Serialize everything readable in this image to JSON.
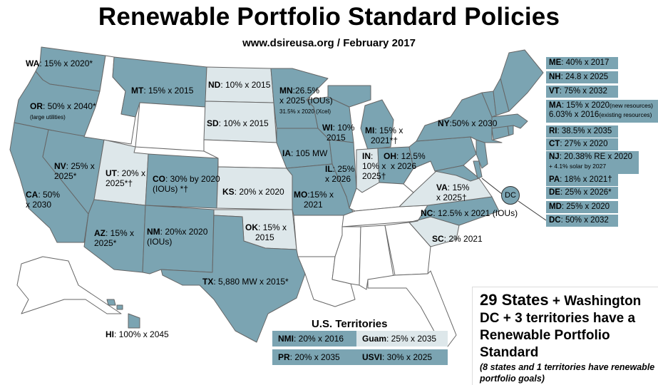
{
  "title": "Renewable Portfolio Standard Policies",
  "subtitle": "www.dsireusa.org  / February 2017",
  "colors": {
    "rps": "#7ba4b2",
    "goal": "#dde7ea",
    "none": "#ffffff",
    "border": "#666666"
  },
  "map_labels": {
    "wa": {
      "code": "WA",
      "text": ": 15% x 2020*"
    },
    "or": {
      "code": "OR",
      "text": ": 50% x 2040*",
      "note": "(large utilities)"
    },
    "ca": {
      "code": "CA",
      "text": ": 50%",
      "line2": "x 2030"
    },
    "nv": {
      "code": "NV",
      "text": ": 25% x",
      "line2": "2025*"
    },
    "ut": {
      "code": "UT",
      "text": ": 20% x",
      "line2": "2025*†"
    },
    "az": {
      "code": "AZ",
      "text": ": 15% x",
      "line2": "2025*"
    },
    "mt": {
      "code": "MT",
      "text": ": 15% x 2015"
    },
    "co": {
      "code": "CO",
      "text": ": 30% by 2020",
      "line2": "(IOUs) *†"
    },
    "nm": {
      "code": "NM",
      "text": ": 20%x 2020",
      "line2": "(IOUs)"
    },
    "nd": {
      "code": "ND",
      "text": ": 10% x 2015"
    },
    "sd": {
      "code": "SD",
      "text": ": 10% x 2015"
    },
    "ks": {
      "code": "KS",
      "text": ": 20% x 2020"
    },
    "ok": {
      "code": "OK",
      "text": ": 15% x",
      "line2": "2015"
    },
    "tx": {
      "code": "TX",
      "text": ": 5,880 MW x 2015*"
    },
    "mn": {
      "code": "MN",
      "text": ":26.5%",
      "line2": "x 2025 (IOUs)",
      "note": "31.5% x 2020 (Xcel)"
    },
    "ia": {
      "code": "IA",
      "text": ": 105 MW"
    },
    "mo": {
      "code": "MO",
      "text": ":15% x",
      "line2": "2021"
    },
    "wi": {
      "code": "WI",
      "text": ": 10%",
      "line2": "2015"
    },
    "il": {
      "code": "IL",
      "text": ": 25%",
      "line2": "x 2026"
    },
    "mi": {
      "code": "MI",
      "text": ": 15% x",
      "line2": "2021*†"
    },
    "in": {
      "code": "IN",
      "text": ":",
      "line2": "10% x",
      "line3": "2025†"
    },
    "oh": {
      "code": "OH",
      "text": ": 12.5%",
      "line2": "x 2026"
    },
    "ny": {
      "code": "NY",
      "text": ":50% x 2030"
    },
    "va": {
      "code": "VA",
      "text": ": 15%",
      "line2": "x 2025†"
    },
    "nc": {
      "code": "NC",
      "text": ": 12.5% x 2021 (IOUs)"
    },
    "sc": {
      "code": "SC",
      "text": ": 2% 2021"
    },
    "hi": {
      "code": "HI",
      "text": ": 100% x 2045"
    },
    "dc": {
      "code": "DC"
    }
  },
  "sidebar": [
    {
      "code": "ME",
      "text": ": 40% x 2017"
    },
    {
      "code": "NH",
      "text": ": 24.8 x 2025"
    },
    {
      "code": "VT",
      "text": ": 75% x 2032"
    },
    {
      "code": "MA",
      "text": ": 15% x 2020",
      "note1": "(new resources)",
      "line2": "6.03% x 2016",
      "note2": "(existing resources)"
    },
    {
      "code": "RI",
      "text": ": 38.5% x 2035"
    },
    {
      "code": "CT",
      "text": ": 27% x 2020"
    },
    {
      "code": "NJ",
      "text": ": 20.38% RE x 2020",
      "line2": "+ 4.1% solar by 2027"
    },
    {
      "code": "PA",
      "text": ": 18% x 2021†"
    },
    {
      "code": "DE",
      "text": ": 25% x 2026*"
    },
    {
      "code": "MD",
      "text": ": 25% x 2020"
    },
    {
      "code": "DC",
      "text": ": 50% x 2032"
    }
  ],
  "territories": {
    "title": "U.S. Territories",
    "items": [
      {
        "code": "NMI",
        "text": ": 20% x 2016"
      },
      {
        "code": "Guam",
        "text": ": 25% x 2035"
      },
      {
        "code": "PR",
        "text": ": 20% x 2035"
      },
      {
        "code": "USVI",
        "text": ": 30% x 2025"
      }
    ]
  },
  "summary": {
    "line1a": "29 States",
    "line1b": " + Washington",
    "line2": "DC + 3 territories have a",
    "line3": "Renewable Portfolio",
    "line4": "Standard",
    "note": "(8 states and 1 territories have renewable portfolio goals)"
  }
}
